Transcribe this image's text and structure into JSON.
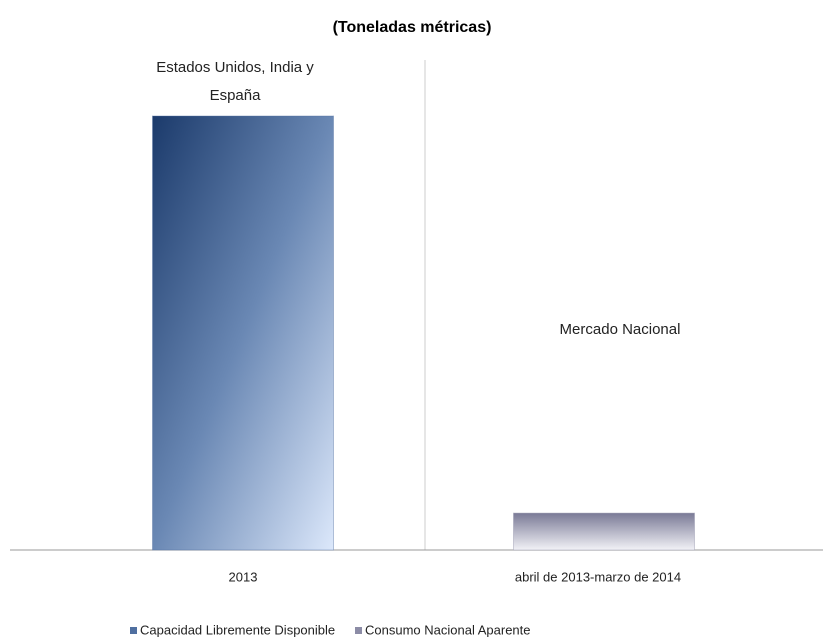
{
  "chart_data": {
    "type": "bar",
    "title": "(Toneladas métricas)",
    "categories": [
      "2013",
      "abril de 2013-marzo de 2014"
    ],
    "groups": [
      [
        "Estados Unidos, India y",
        "España"
      ],
      [
        "Mercado Nacional"
      ]
    ],
    "series": [
      {
        "name": "Capacidad Libremente Disponible",
        "color": "#4f6fa0",
        "values": [
          100,
          null
        ]
      },
      {
        "name": "Consumo Nacional Aparente",
        "color": "#8c8ca6",
        "values": [
          null,
          8.5
        ]
      }
    ],
    "ylim": [
      0,
      100
    ],
    "grid": false
  }
}
